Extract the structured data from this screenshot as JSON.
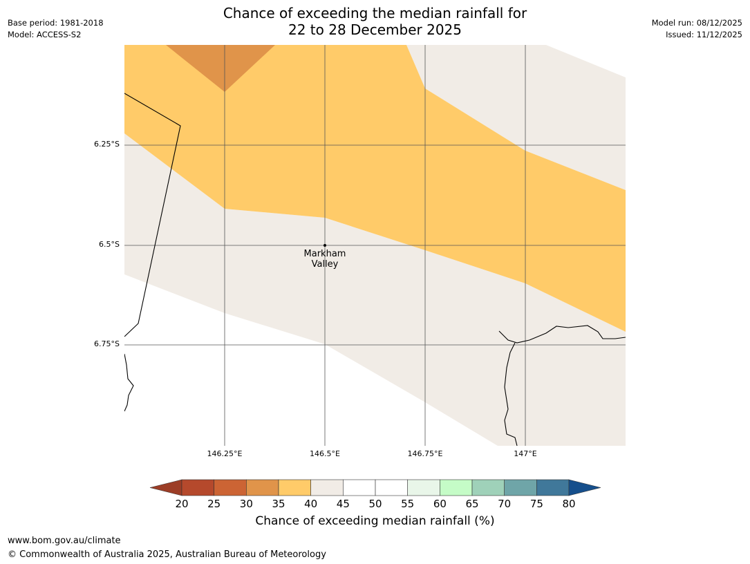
{
  "header": {
    "title_line1": "Chance of exceeding the median rainfall for",
    "title_line2": "22 to 28 December 2025",
    "base_period": "Base period: 1981-2018",
    "model": "Model: ACCESS-S2",
    "model_run": "Model run: 08/12/2025",
    "issued": "Issued: 11/12/2025"
  },
  "map": {
    "y_ticks": [
      "6.25°S",
      "6.5°S",
      "6.75°S"
    ],
    "x_ticks": [
      "146.25°E",
      "146.5°E",
      "146.75°E",
      "147°E"
    ],
    "place_line1": "Markham",
    "place_line2": "Valley",
    "colors": {
      "band_30_35": "#e0944a",
      "band_35_40": "#ffcb69",
      "band_40_45": "#f1ece6",
      "grid": "#555555",
      "coast": "#000000"
    }
  },
  "colorbar": {
    "labels": [
      "20",
      "25",
      "30",
      "35",
      "40",
      "45",
      "50",
      "55",
      "60",
      "65",
      "70",
      "75",
      "80"
    ],
    "colors": [
      "#b5492c",
      "#cc6434",
      "#e0944a",
      "#ffcb69",
      "#f1ece6",
      "#ffffff",
      "#ffffff",
      "#e9f6e9",
      "#c5fcc7",
      "#9fd1b9",
      "#6fa5a8",
      "#40789a"
    ],
    "low_arrow_color": "#9c3d26",
    "high_arrow_color": "#164f8c",
    "title": "Chance of exceeding median rainfall (%)"
  },
  "footer": {
    "url": "www.bom.gov.au/climate",
    "copyright": "© Commonwealth of Australia 2025, Australian Bureau of Meteorology"
  }
}
